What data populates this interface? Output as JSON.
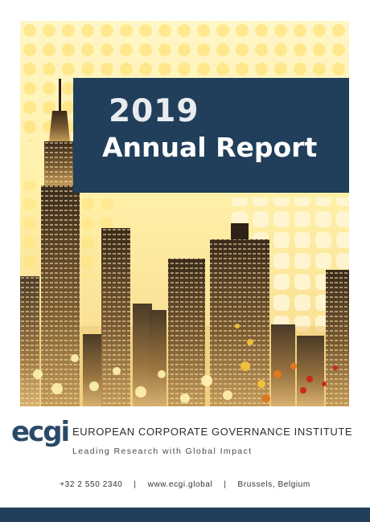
{
  "cover": {
    "year": "2019",
    "title": "Annual Report"
  },
  "organization": {
    "logo_text": "ecgi",
    "name": "EUROPEAN CORPORATE GOVERNANCE INSTITUTE",
    "tagline": "Leading Research with Global Impact"
  },
  "contact": {
    "phone": "+32 2 550 2340",
    "separator": "|",
    "website": "www.ecgi.global",
    "location": "Brussels, Belgium"
  },
  "colors": {
    "navy": "#213f5b",
    "gold": "#f3d65a",
    "bronze": "#b98a4a",
    "white": "#ffffff"
  },
  "icons": {
    "skyline": "city-skyline-illustration"
  }
}
